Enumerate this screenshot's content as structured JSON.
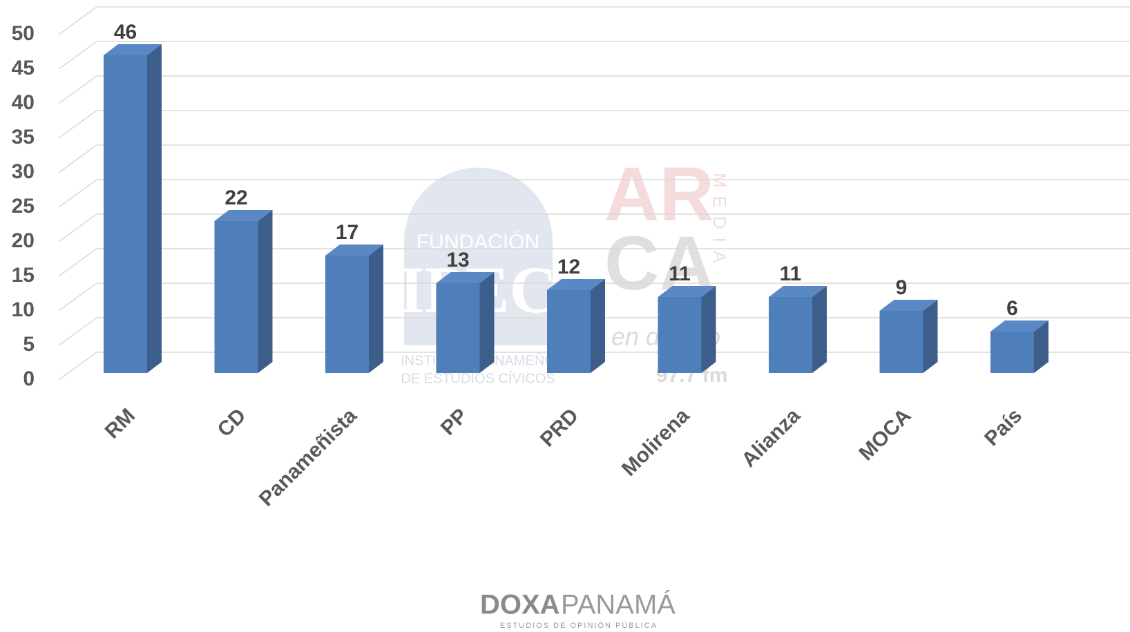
{
  "chart_data": {
    "type": "bar3d",
    "categories": [
      "RM",
      "CD",
      "Panameñista",
      "PP",
      "PRD",
      "Molirena",
      "Alianza",
      "MOCA",
      "País"
    ],
    "values": [
      46,
      22,
      17,
      13,
      12,
      11,
      11,
      9,
      6
    ],
    "color": "#4f7fba",
    "ylim": [
      0,
      50
    ],
    "yticks": [
      0,
      5,
      10,
      15,
      20,
      25,
      30,
      35,
      40,
      45,
      50
    ],
    "grid": true
  },
  "watermarks": {
    "ipec_top": "FUNDACIÓN",
    "ipec_logo": "IPEC",
    "ipec_line1": "INSTITUTO PANAMEÑO",
    "ipec_line2": "DE ESTUDIOS CÍVICOS",
    "arca_1": "AR",
    "arca_2": "CA",
    "arca_media": "MEDIA",
    "arca_slogan": "en directo",
    "arca_freq": "97.7 fm",
    "doxa_bold": "DOXA",
    "doxa_light": "PANAMÁ",
    "doxa_sub": "ESTUDIOS DE OPINIÓN PÚBLICA"
  }
}
